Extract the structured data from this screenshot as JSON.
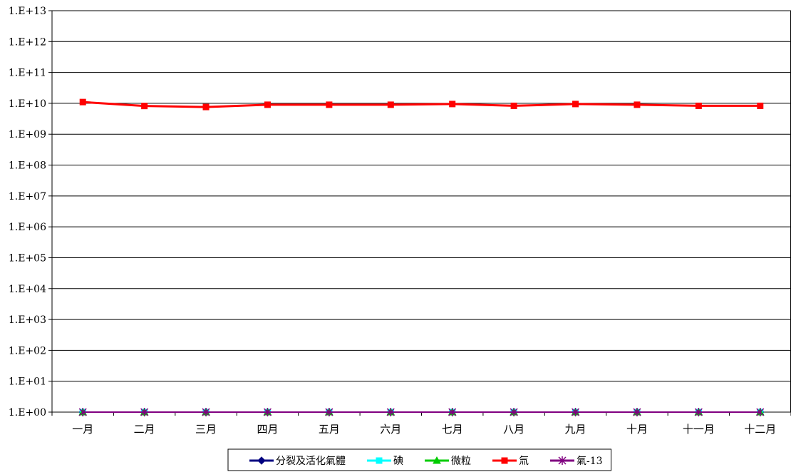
{
  "chart_data": {
    "type": "line",
    "y_scale": "log",
    "ylim": [
      1,
      10000000000000.0
    ],
    "y_tick_labels": [
      "1.E+00",
      "1.E+01",
      "1.E+02",
      "1.E+03",
      "1.E+04",
      "1.E+05",
      "1.E+06",
      "1.E+07",
      "1.E+08",
      "1.E+09",
      "1.E+10",
      "1.E+11",
      "1.E+12",
      "1.E+13"
    ],
    "categories": [
      "一月",
      "二月",
      "三月",
      "四月",
      "五月",
      "六月",
      "七月",
      "八月",
      "九月",
      "十月",
      "十一月",
      "十二月"
    ],
    "grid": "horizontal",
    "legend_position": "bottom",
    "series": [
      {
        "name": "分裂及活化氣體",
        "color": "#000080",
        "marker": "diamond",
        "values": [
          1,
          1,
          1,
          1,
          1,
          1,
          1,
          1,
          1,
          1,
          1,
          1
        ]
      },
      {
        "name": "碘",
        "color": "#00ffff",
        "marker": "square",
        "values": [
          1,
          1,
          1,
          1,
          1,
          1,
          1,
          1,
          1,
          1,
          1,
          1
        ]
      },
      {
        "name": "微粒",
        "color": "#00cc00",
        "marker": "triangle",
        "values": [
          1,
          1,
          1,
          1,
          1,
          1,
          1,
          1,
          1,
          1,
          1,
          1
        ]
      },
      {
        "name": "氚",
        "color": "#ff0000",
        "marker": "square",
        "values": [
          11000000000.0,
          8200000000.0,
          7600000000.0,
          9000000000.0,
          9000000000.0,
          9000000000.0,
          9500000000.0,
          8300000000.0,
          9500000000.0,
          9000000000.0,
          8300000000.0,
          8300000000.0
        ]
      },
      {
        "name": "氣-13",
        "color": "#800080",
        "marker": "asterisk",
        "values": [
          1,
          1,
          1,
          1,
          1,
          1,
          1,
          1,
          1,
          1,
          1,
          1
        ]
      }
    ]
  }
}
